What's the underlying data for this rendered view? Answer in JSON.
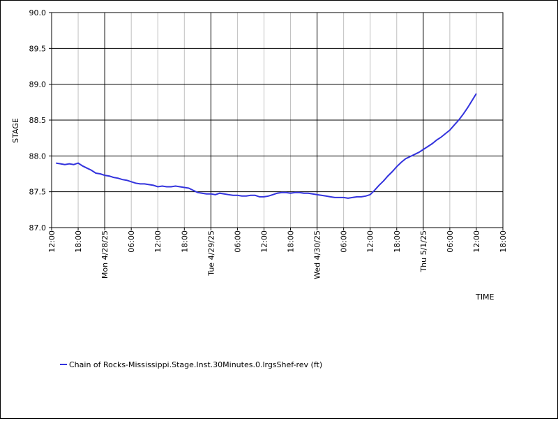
{
  "chart_data": {
    "type": "line",
    "ylabel": "STAGE",
    "xlabel": "TIME",
    "ylim": [
      87.0,
      90.0
    ],
    "yticks": [
      "87.0",
      "87.5",
      "88.0",
      "88.5",
      "89.0",
      "89.5",
      "90.0"
    ],
    "xlim_hours": [
      0,
      102
    ],
    "xticks": [
      {
        "h": 0,
        "label": "12:00"
      },
      {
        "h": 6,
        "label": "18:00"
      },
      {
        "h": 12,
        "label": "Mon 4/28/25"
      },
      {
        "h": 18,
        "label": "06:00"
      },
      {
        "h": 24,
        "label": "12:00"
      },
      {
        "h": 30,
        "label": "18:00"
      },
      {
        "h": 36,
        "label": "Tue 4/29/25"
      },
      {
        "h": 42,
        "label": "06:00"
      },
      {
        "h": 48,
        "label": "12:00"
      },
      {
        "h": 54,
        "label": "18:00"
      },
      {
        "h": 60,
        "label": "Wed 4/30/25"
      },
      {
        "h": 66,
        "label": "06:00"
      },
      {
        "h": 72,
        "label": "12:00"
      },
      {
        "h": 78,
        "label": "18:00"
      },
      {
        "h": 84,
        "label": "Thu 5/1/25"
      },
      {
        "h": 90,
        "label": "06:00"
      },
      {
        "h": 96,
        "label": "12:00"
      },
      {
        "h": 102,
        "label": "18:00"
      }
    ],
    "major_gridline_hours": [
      12,
      36,
      60,
      84
    ],
    "grid": true,
    "legend_position": "bottom-left",
    "series": [
      {
        "name": "Chain of Rocks-Mississippi.Stage.Inst.30Minutes.0.lrgsShef-rev (ft)",
        "color": "#3333dd",
        "x_hours": [
          1,
          2,
          3,
          4,
          5,
          6,
          7,
          8,
          9,
          10,
          11,
          12,
          13,
          14,
          15,
          16,
          17,
          18,
          19,
          20,
          21,
          22,
          23,
          24,
          25,
          26,
          27,
          28,
          29,
          30,
          31,
          32,
          33,
          34,
          35,
          36,
          37,
          38,
          39,
          40,
          41,
          42,
          43,
          44,
          45,
          46,
          47,
          48,
          49,
          50,
          51,
          52,
          53,
          54,
          55,
          56,
          57,
          58,
          59,
          60,
          61,
          62,
          63,
          64,
          65,
          66,
          67,
          68,
          69,
          70,
          71,
          72,
          73,
          74,
          75,
          76,
          77,
          78,
          79,
          80,
          81,
          82,
          83,
          84,
          85,
          86,
          87,
          88,
          89,
          90,
          91,
          92,
          93,
          94,
          95,
          96
        ],
        "values": [
          87.9,
          87.89,
          87.88,
          87.89,
          87.88,
          87.9,
          87.86,
          87.83,
          87.8,
          87.76,
          87.75,
          87.73,
          87.72,
          87.7,
          87.69,
          87.67,
          87.66,
          87.64,
          87.62,
          87.61,
          87.61,
          87.6,
          87.59,
          87.57,
          87.58,
          87.57,
          87.57,
          87.58,
          87.57,
          87.56,
          87.55,
          87.52,
          87.49,
          87.48,
          87.47,
          87.47,
          87.46,
          87.48,
          87.47,
          87.46,
          87.45,
          87.45,
          87.44,
          87.44,
          87.45,
          87.45,
          87.43,
          87.43,
          87.44,
          87.46,
          87.48,
          87.49,
          87.49,
          87.48,
          87.49,
          87.49,
          87.48,
          87.48,
          87.47,
          87.46,
          87.45,
          87.44,
          87.43,
          87.42,
          87.42,
          87.42,
          87.41,
          87.42,
          87.43,
          87.43,
          87.44,
          87.46,
          87.52,
          87.59,
          87.65,
          87.72,
          87.78,
          87.85,
          87.91,
          87.96,
          87.99,
          88.02,
          88.05,
          88.09,
          88.13,
          88.17,
          88.22,
          88.26,
          88.31,
          88.36,
          88.43,
          88.5,
          88.58,
          88.67,
          88.77,
          88.87
        ]
      }
    ]
  }
}
